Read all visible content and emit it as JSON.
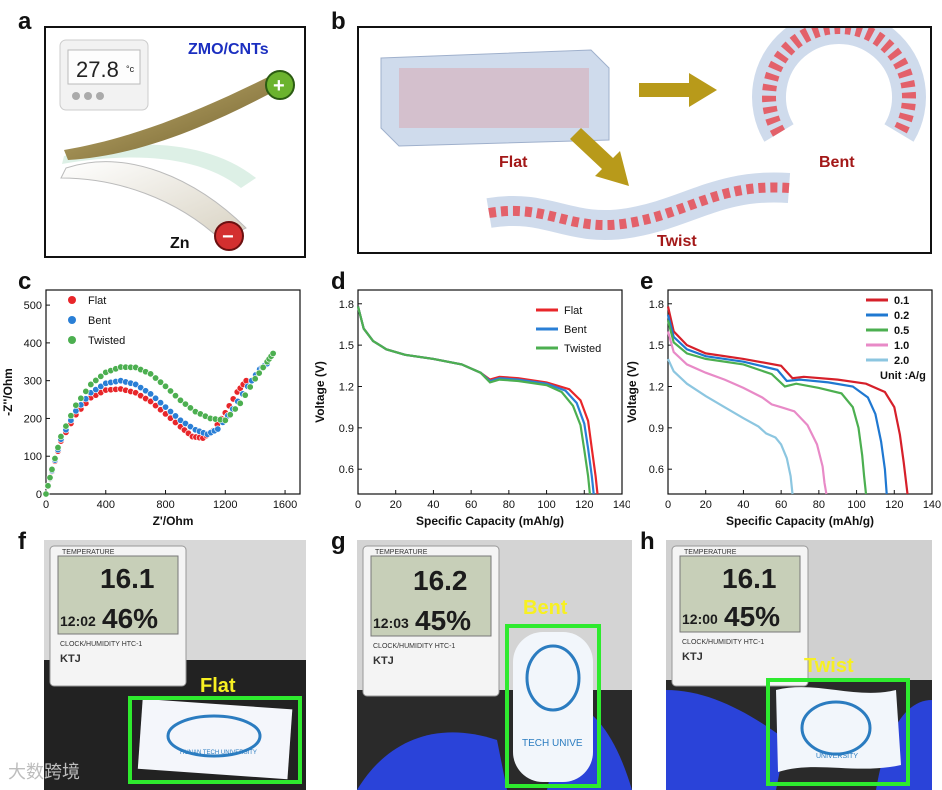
{
  "panel_letters": {
    "a": "a",
    "b": "b",
    "c": "c",
    "d": "d",
    "e": "e",
    "f": "f",
    "g": "g",
    "h": "h"
  },
  "panel_a": {
    "thermo": "27.8",
    "unit": "°c",
    "cathode": "ZMO/CNTs",
    "anode": "Zn",
    "plus": "+",
    "minus": "−"
  },
  "panel_b": {
    "flat": "Flat",
    "bent": "Bent",
    "twist": "Twist"
  },
  "photos": {
    "f": {
      "label": "Flat",
      "thermo_top": "TEMPERATURE",
      "temp": "16.1",
      "time": "12:02",
      "hum": "46%",
      "brand": "KTJ",
      "caption": "CLOCK/HUMIDITY  HTC-1",
      "uni": "HUNAN TECH UNIVERSITY"
    },
    "g": {
      "label": "Bent",
      "thermo_top": "TEMPERATURE",
      "temp": "16.2",
      "time": "12:03",
      "hum": "45%",
      "brand": "KTJ",
      "caption": "CLOCK/HUMIDITY  HTC-1",
      "uni": "TECH UNIVE"
    },
    "h": {
      "label": "Twist",
      "thermo_top": "TEMPERATURE",
      "temp": "16.1",
      "time": "12:00",
      "hum": "45%",
      "brand": "KTJ",
      "caption": "CLOCK/HUMIDITY  HTC-1",
      "uni": "UNIVERSITY"
    }
  },
  "watermark": "大数跨境",
  "colors": {
    "flat": "#e8262a",
    "bent": "#2a7fd6",
    "twisted": "#4caf50",
    "c01": "#d6202a",
    "c02": "#1f78d1",
    "c05": "#4caf50",
    "c10": "#e88ac7",
    "c20": "#8cc6e0",
    "green_box": "#2eea2e",
    "yellow": "#f7f022"
  },
  "chart_data": [
    {
      "type": "scatter",
      "id": "c",
      "title": "",
      "xlabel": "Z'/Ohm",
      "ylabel": "-Z''/Ohm",
      "xlim": [
        0,
        1700
      ],
      "ylim": [
        0,
        540
      ],
      "xticks": [
        "0",
        "400",
        "800",
        "1200",
        "1600"
      ],
      "yticks": [
        "0",
        "100",
        "200",
        "300",
        "400",
        "500"
      ],
      "series": [
        {
          "name": "Flat",
          "color": "#e8262a",
          "points": [
            [
              0,
              0
            ],
            [
              40,
              60
            ],
            [
              100,
              140
            ],
            [
              200,
              210
            ],
            [
              300,
              255
            ],
            [
              400,
              275
            ],
            [
              500,
              278
            ],
            [
              600,
              268
            ],
            [
              700,
              245
            ],
            [
              800,
              212
            ],
            [
              900,
              178
            ],
            [
              980,
              152
            ],
            [
              1050,
              148
            ],
            [
              1120,
              168
            ],
            [
              1200,
              215
            ],
            [
              1280,
              270
            ],
            [
              1340,
              300
            ]
          ]
        },
        {
          "name": "Bent",
          "color": "#2a7fd6",
          "points": [
            [
              0,
              0
            ],
            [
              40,
              62
            ],
            [
              100,
              145
            ],
            [
              200,
              220
            ],
            [
              300,
              268
            ],
            [
              400,
              293
            ],
            [
              500,
              300
            ],
            [
              600,
              290
            ],
            [
              700,
              265
            ],
            [
              800,
              230
            ],
            [
              900,
              195
            ],
            [
              1000,
              170
            ],
            [
              1080,
              158
            ],
            [
              1150,
              172
            ],
            [
              1250,
              225
            ],
            [
              1350,
              285
            ],
            [
              1430,
              330
            ],
            [
              1480,
              345
            ]
          ]
        },
        {
          "name": "Twisted",
          "color": "#4caf50",
          "points": [
            [
              0,
              0
            ],
            [
              40,
              65
            ],
            [
              100,
              152
            ],
            [
              200,
              235
            ],
            [
              300,
              290
            ],
            [
              400,
              322
            ],
            [
              500,
              336
            ],
            [
              600,
              335
            ],
            [
              700,
              318
            ],
            [
              800,
              285
            ],
            [
              900,
              248
            ],
            [
              1000,
              218
            ],
            [
              1100,
              200
            ],
            [
              1200,
              195
            ],
            [
              1300,
              240
            ],
            [
              1400,
              305
            ],
            [
              1480,
              350
            ],
            [
              1520,
              372
            ]
          ]
        }
      ]
    },
    {
      "type": "line",
      "id": "d",
      "title": "",
      "xlabel": "Specific Capacity (mAh/g)",
      "ylabel": "Voltage (V)",
      "xlim": [
        0,
        140
      ],
      "ylim": [
        0.42,
        1.9
      ],
      "xticks": [
        "0",
        "20",
        "40",
        "60",
        "80",
        "100",
        "120",
        "140"
      ],
      "yticks": [
        "0.6",
        "0.9",
        "1.2",
        "1.5",
        "1.8"
      ],
      "series": [
        {
          "name": "Flat",
          "color": "#e8262a",
          "points": [
            [
              0,
              1.78
            ],
            [
              3,
              1.62
            ],
            [
              8,
              1.53
            ],
            [
              15,
              1.47
            ],
            [
              25,
              1.43
            ],
            [
              40,
              1.4
            ],
            [
              55,
              1.36
            ],
            [
              65,
              1.3
            ],
            [
              70,
              1.25
            ],
            [
              75,
              1.27
            ],
            [
              85,
              1.26
            ],
            [
              100,
              1.23
            ],
            [
              112,
              1.18
            ],
            [
              118,
              1.1
            ],
            [
              122,
              0.95
            ],
            [
              124,
              0.75
            ],
            [
              126,
              0.55
            ],
            [
              127,
              0.42
            ]
          ]
        },
        {
          "name": "Bent",
          "color": "#2a7fd6",
          "points": [
            [
              0,
              1.78
            ],
            [
              3,
              1.62
            ],
            [
              8,
              1.53
            ],
            [
              15,
              1.47
            ],
            [
              25,
              1.43
            ],
            [
              40,
              1.4
            ],
            [
              55,
              1.36
            ],
            [
              65,
              1.3
            ],
            [
              70,
              1.24
            ],
            [
              75,
              1.26
            ],
            [
              85,
              1.25
            ],
            [
              100,
              1.22
            ],
            [
              110,
              1.17
            ],
            [
              116,
              1.08
            ],
            [
              120,
              0.93
            ],
            [
              122,
              0.75
            ],
            [
              124,
              0.55
            ],
            [
              125,
              0.42
            ]
          ]
        },
        {
          "name": "Twisted",
          "color": "#4caf50",
          "points": [
            [
              0,
              1.78
            ],
            [
              3,
              1.62
            ],
            [
              8,
              1.53
            ],
            [
              15,
              1.47
            ],
            [
              25,
              1.43
            ],
            [
              40,
              1.4
            ],
            [
              55,
              1.36
            ],
            [
              65,
              1.3
            ],
            [
              70,
              1.23
            ],
            [
              75,
              1.25
            ],
            [
              85,
              1.24
            ],
            [
              100,
              1.21
            ],
            [
              108,
              1.16
            ],
            [
              114,
              1.06
            ],
            [
              118,
              0.92
            ],
            [
              120,
              0.74
            ],
            [
              122,
              0.55
            ],
            [
              123,
              0.42
            ]
          ]
        }
      ]
    },
    {
      "type": "line",
      "id": "e",
      "title": "",
      "xlabel": "Specific Capacity (mAh/g)",
      "ylabel": "Voltage (V)",
      "xlim": [
        0,
        140
      ],
      "ylim": [
        0.42,
        1.9
      ],
      "xticks": [
        "0",
        "20",
        "40",
        "60",
        "80",
        "100",
        "120",
        "140"
      ],
      "yticks": [
        "0.6",
        "0.9",
        "1.2",
        "1.5",
        "1.8"
      ],
      "legend_note": "Unit :A/g",
      "series": [
        {
          "name": "0.1",
          "color": "#d6202a",
          "points": [
            [
              0,
              1.78
            ],
            [
              3,
              1.6
            ],
            [
              10,
              1.5
            ],
            [
              20,
              1.44
            ],
            [
              40,
              1.4
            ],
            [
              60,
              1.35
            ],
            [
              66,
              1.26
            ],
            [
              72,
              1.27
            ],
            [
              90,
              1.25
            ],
            [
              105,
              1.22
            ],
            [
              115,
              1.16
            ],
            [
              120,
              1.05
            ],
            [
              123,
              0.85
            ],
            [
              125,
              0.65
            ],
            [
              127,
              0.42
            ]
          ]
        },
        {
          "name": "0.2",
          "color": "#1f78d1",
          "points": [
            [
              0,
              1.72
            ],
            [
              3,
              1.56
            ],
            [
              10,
              1.47
            ],
            [
              20,
              1.42
            ],
            [
              40,
              1.38
            ],
            [
              58,
              1.32
            ],
            [
              63,
              1.24
            ],
            [
              70,
              1.25
            ],
            [
              85,
              1.23
            ],
            [
              98,
              1.2
            ],
            [
              106,
              1.12
            ],
            [
              110,
              1.0
            ],
            [
              113,
              0.8
            ],
            [
              115,
              0.6
            ],
            [
              116,
              0.42
            ]
          ]
        },
        {
          "name": "0.5",
          "color": "#4caf50",
          "points": [
            [
              0,
              1.68
            ],
            [
              3,
              1.52
            ],
            [
              10,
              1.44
            ],
            [
              20,
              1.4
            ],
            [
              40,
              1.36
            ],
            [
              55,
              1.29
            ],
            [
              62,
              1.2
            ],
            [
              68,
              1.22
            ],
            [
              80,
              1.19
            ],
            [
              92,
              1.15
            ],
            [
              98,
              1.05
            ],
            [
              101,
              0.9
            ],
            [
              103,
              0.7
            ],
            [
              104,
              0.55
            ],
            [
              105,
              0.42
            ]
          ]
        },
        {
          "name": "1.0",
          "color": "#e88ac7",
          "points": [
            [
              0,
              1.6
            ],
            [
              3,
              1.45
            ],
            [
              10,
              1.36
            ],
            [
              20,
              1.3
            ],
            [
              30,
              1.25
            ],
            [
              40,
              1.19
            ],
            [
              50,
              1.12
            ],
            [
              55,
              1.07
            ],
            [
              60,
              1.05
            ],
            [
              67,
              1.02
            ],
            [
              74,
              0.92
            ],
            [
              79,
              0.78
            ],
            [
              82,
              0.62
            ],
            [
              83,
              0.5
            ],
            [
              84,
              0.42
            ]
          ]
        },
        {
          "name": "2.0",
          "color": "#8cc6e0",
          "points": [
            [
              0,
              1.4
            ],
            [
              3,
              1.31
            ],
            [
              10,
              1.22
            ],
            [
              20,
              1.13
            ],
            [
              30,
              1.05
            ],
            [
              40,
              0.97
            ],
            [
              48,
              0.91
            ],
            [
              52,
              0.86
            ],
            [
              57,
              0.83
            ],
            [
              60,
              0.78
            ],
            [
              63,
              0.68
            ],
            [
              65,
              0.55
            ],
            [
              66,
              0.42
            ]
          ]
        }
      ]
    }
  ]
}
